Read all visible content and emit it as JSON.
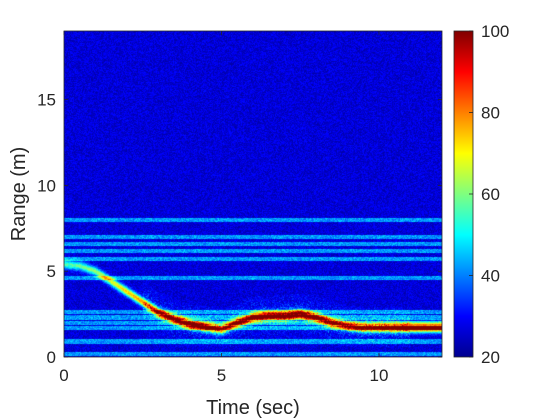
{
  "chart_data": {
    "type": "heatmap",
    "title": "",
    "xlabel": "Time (sec)",
    "ylabel": "Range (m)",
    "xlim": [
      0,
      12
    ],
    "ylim": [
      0,
      19
    ],
    "xticks": [
      0,
      5,
      10
    ],
    "xtick_labels": [
      "0",
      "5",
      "10"
    ],
    "yticks": [
      0,
      5,
      10,
      15
    ],
    "ytick_labels": [
      "0",
      "5",
      "10",
      "15"
    ],
    "colorbar": {
      "range": [
        20,
        100
      ],
      "ticks": [
        20,
        40,
        60,
        80,
        100
      ],
      "tick_labels": [
        "20",
        "40",
        "60",
        "80",
        "100"
      ],
      "colormap": "jet"
    },
    "background_level": 27,
    "static_range_lines_m": [
      0.2,
      0.9,
      1.7,
      2.0,
      2.3,
      2.6,
      4.6,
      5.7,
      6.2,
      6.6,
      7.0,
      8.0
    ],
    "target_track": {
      "time_s": [
        0,
        0.5,
        1.0,
        1.5,
        2.0,
        2.5,
        3.0,
        3.5,
        4.0,
        4.5,
        5.0,
        5.5,
        6.0,
        6.5,
        7.0,
        7.5,
        8.0,
        8.5,
        9.0,
        9.5,
        10.0,
        10.5,
        11.0,
        11.5,
        12.0
      ],
      "range_m": [
        5.4,
        5.3,
        5.0,
        4.4,
        3.8,
        3.2,
        2.6,
        2.2,
        1.9,
        1.75,
        1.6,
        2.0,
        2.3,
        2.4,
        2.4,
        2.5,
        2.3,
        2.0,
        1.8,
        1.7,
        1.7,
        1.7,
        1.7,
        1.7,
        1.7
      ],
      "level": [
        55,
        58,
        62,
        68,
        74,
        80,
        86,
        90,
        95,
        93,
        82,
        88,
        92,
        95,
        96,
        95,
        90,
        85,
        84,
        85,
        86,
        92,
        97,
        98,
        98
      ]
    }
  }
}
